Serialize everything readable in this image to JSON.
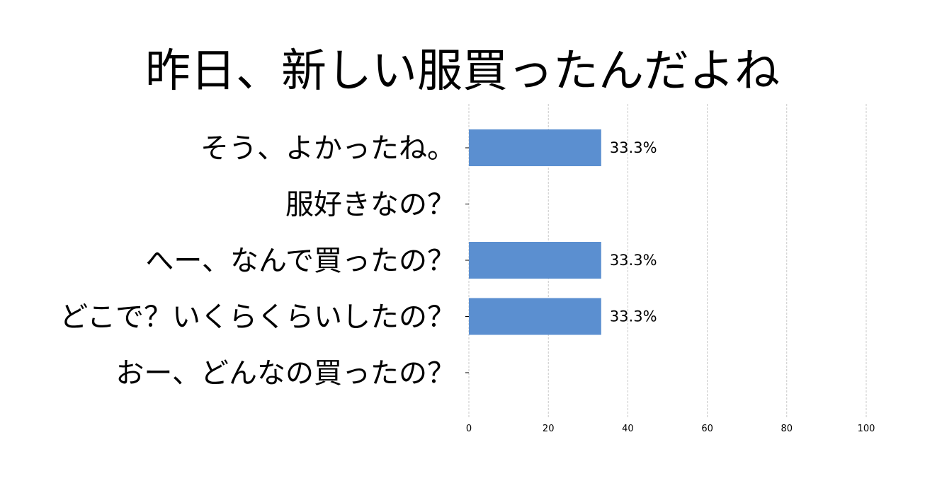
{
  "chart_data": {
    "type": "bar",
    "orientation": "horizontal",
    "title": "昨日、新しい服買ったんだよね",
    "categories": [
      "そう、よかったね。",
      "服好きなの？",
      "へー、なんで買ったの？",
      "どこで？いくらくらいしたの？",
      "おー、どんなの買ったの？"
    ],
    "values": [
      33.3,
      0,
      33.3,
      33.3,
      0
    ],
    "data_labels": [
      "33.3%",
      "",
      "33.3%",
      "33.3%",
      ""
    ],
    "xlim": [
      0,
      100
    ],
    "xticks": [
      0,
      20,
      40,
      60,
      80,
      100
    ],
    "xtick_labels": [
      "0",
      "20",
      "40",
      "60",
      "80",
      "100"
    ],
    "grid": "vertical dashed",
    "bar_color": "#5b8fd0",
    "grid_color": "#bbbbbb"
  }
}
